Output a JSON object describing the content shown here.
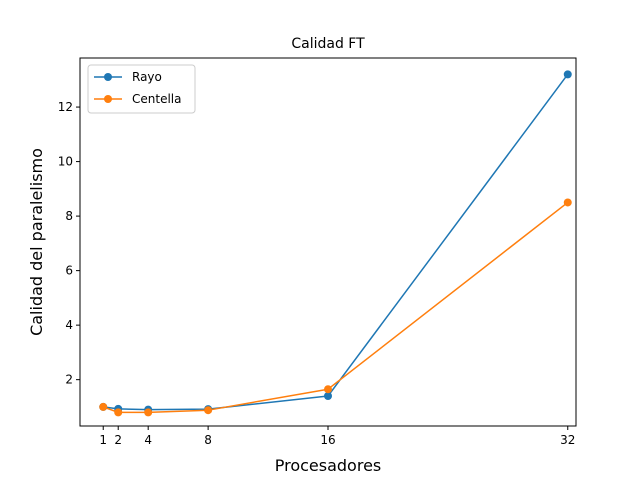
{
  "chart_data": {
    "type": "line",
    "title": "Calidad FT",
    "xlabel": "Procesadores",
    "ylabel": "Calidad del paralelismo",
    "x": [
      1,
      2,
      4,
      8,
      16,
      32
    ],
    "xticks": [
      1,
      2,
      4,
      8,
      16,
      32
    ],
    "yticks": [
      2,
      4,
      6,
      8,
      10,
      12
    ],
    "xlim": [
      -0.55,
      32.55
    ],
    "ylim": [
      0.3,
      13.8
    ],
    "grid": false,
    "legend_position": "top-left",
    "series": [
      {
        "name": "Rayo",
        "color": "#1f77b4",
        "values": [
          1.0,
          0.93,
          0.9,
          0.92,
          1.4,
          13.2
        ]
      },
      {
        "name": "Centella",
        "color": "#ff7f0e",
        "values": [
          1.0,
          0.8,
          0.8,
          0.88,
          1.65,
          8.5
        ]
      }
    ]
  }
}
